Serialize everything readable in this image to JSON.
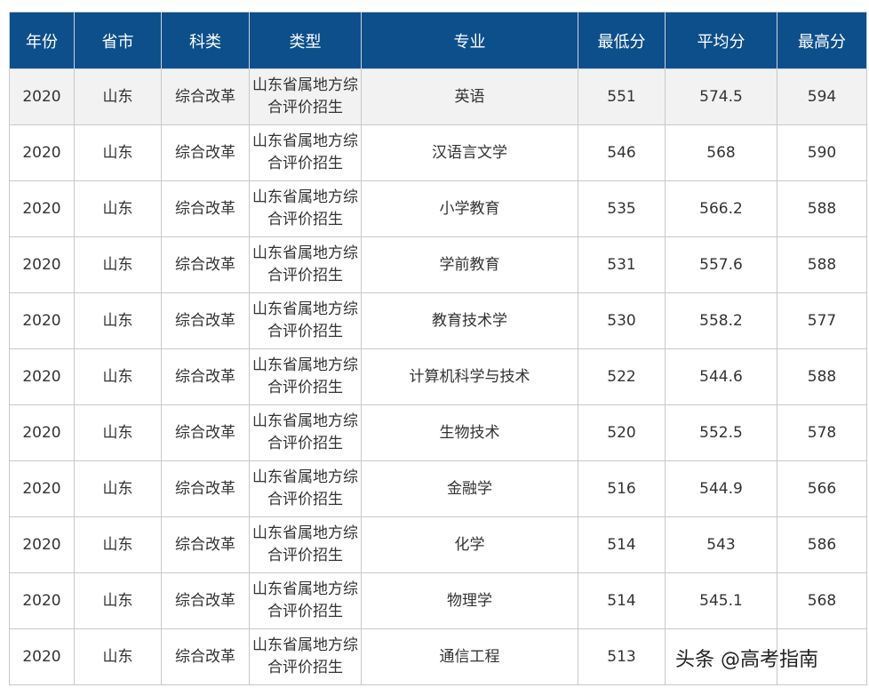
{
  "table": {
    "header": [
      "年份",
      "省市",
      "科类",
      "类型",
      "专业",
      "最低分",
      "平均分",
      "最高分"
    ],
    "rows": [
      [
        2020,
        "山东",
        "综合改革",
        "山东省属地方综合评价招生",
        "英语",
        551,
        574.5,
        594
      ],
      [
        2020,
        "山东",
        "综合改革",
        "山东省属地方综合评价招生",
        "汉语言文学",
        546,
        568,
        590
      ],
      [
        2020,
        "山东",
        "综合改革",
        "山东省属地方综合评价招生",
        "小学教育",
        535,
        566.2,
        588
      ],
      [
        2020,
        "山东",
        "综合改革",
        "山东省属地方综合评价招生",
        "学前教育",
        531,
        557.6,
        588
      ],
      [
        2020,
        "山东",
        "综合改革",
        "山东省属地方综合评价招生",
        "教育技术学",
        530,
        558.2,
        577
      ],
      [
        2020,
        "山东",
        "综合改革",
        "山东省属地方综合评价招生",
        "计算机科学与技术",
        522,
        544.6,
        588
      ],
      [
        2020,
        "山东",
        "综合改革",
        "山东省属地方综合评价招生",
        "生物技术",
        520,
        552.5,
        578
      ],
      [
        2020,
        "山东",
        "综合改革",
        "山东省属地方综合评价招生",
        "金融学",
        516,
        544.9,
        566
      ],
      [
        2020,
        "山东",
        "综合改革",
        "山东省属地方综合评价招生",
        "化学",
        514,
        543,
        586
      ],
      [
        2020,
        "山东",
        "综合改革",
        "山东省属地方综合评价招生",
        "物理学",
        514,
        545.1,
        568
      ],
      [
        2020,
        "山东",
        "综合改革",
        "山东省属地方综合评价招生",
        "通信工程",
        513,
        null,
        null
      ]
    ]
  },
  "watermark": "头条 @高考指南"
}
